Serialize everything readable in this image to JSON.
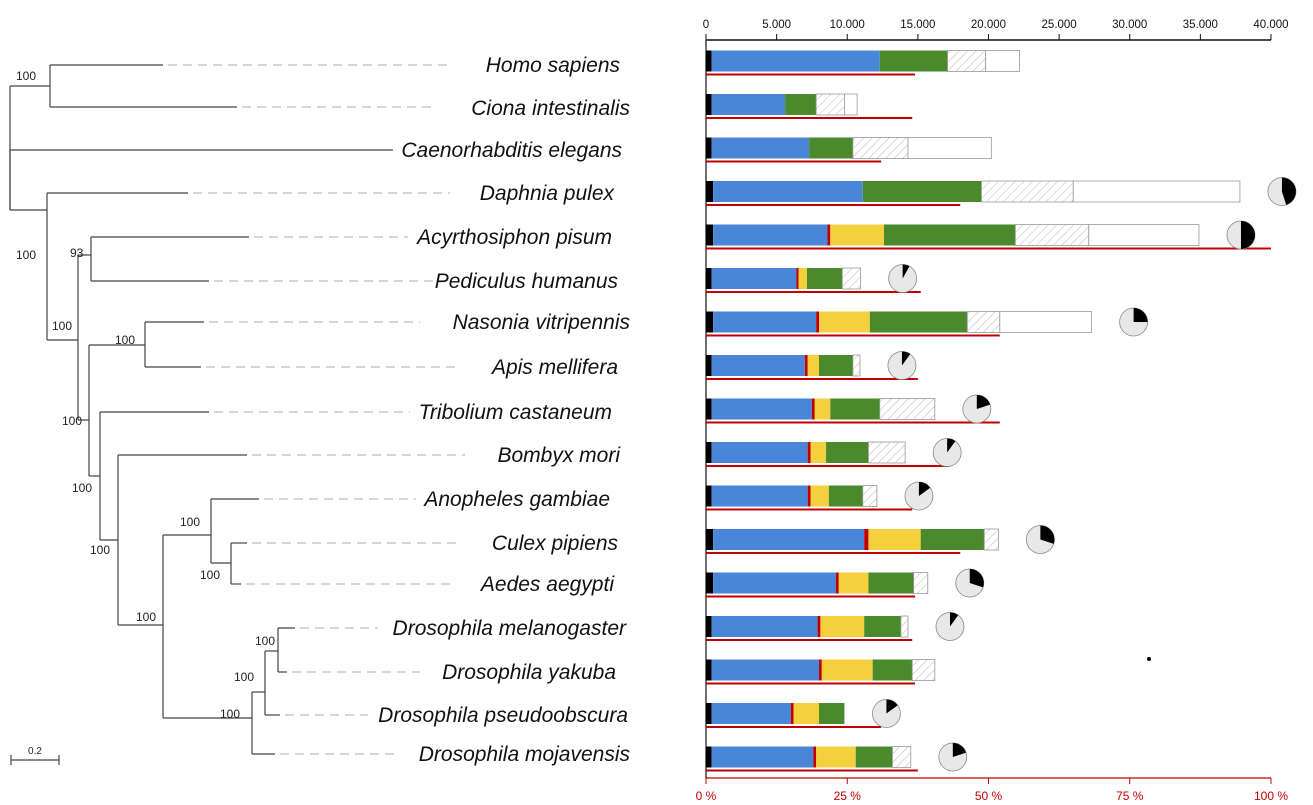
{
  "chart_data": [
    {
      "type": "tree",
      "scale_bar_label": "0.2",
      "leaves": [
        "Homo sapiens",
        "Ciona intestinalis",
        "Caenorhabditis elegans",
        "Daphnia pulex",
        "Acyrthosiphon pisum",
        "Pediculus humanus",
        "Nasonia vitripennis",
        "Apis mellifera",
        "Tribolium castaneum",
        "Bombyx mori",
        "Anopheles gambiae",
        "Culex pipiens",
        "Aedes aegypti",
        "Drosophila melanogaster",
        "Drosophila yakuba",
        "Drosophila pseudoobscura",
        "Drosophila mojavensis"
      ],
      "bootstrap_labels": [
        "100",
        "100",
        "93",
        "100",
        "100",
        "100",
        "100",
        "100",
        "100",
        "100",
        "100",
        "100",
        "100",
        "100"
      ]
    },
    {
      "type": "bar",
      "stacked": true,
      "xlim_top": [
        0,
        40000
      ],
      "top_ticks": [
        "0",
        "5.000",
        "10.000",
        "15.000",
        "20.000",
        "25.000",
        "30.000",
        "35.000",
        "40.000"
      ],
      "bottom_ticks": [
        "0 %",
        "25 %",
        "50 %",
        "75 %",
        "100 %"
      ],
      "segment_colors": [
        "#000000",
        "#4a86d8",
        "#c00000",
        "#f4d03f",
        "#4b8a2c",
        "hatch",
        "#ffffff"
      ],
      "series_colors": {
        "percent_line": "#c00000",
        "pie_fill": "#e8e8e8",
        "pie_slice": "#000000"
      },
      "rows": [
        {
          "species": "Homo sapiens",
          "segments": [
            400,
            11900,
            0,
            0,
            4800,
            2700,
            2400
          ],
          "percent": 37,
          "pie": null
        },
        {
          "species": "Ciona intestinalis",
          "segments": [
            400,
            5200,
            0,
            0,
            2200,
            2000,
            900
          ],
          "percent": 36.5,
          "pie": null
        },
        {
          "species": "Caenorhabditis elegans",
          "segments": [
            400,
            6900,
            0,
            0,
            3100,
            3900,
            5900
          ],
          "percent": 31,
          "pie": null
        },
        {
          "species": "Daphnia pulex",
          "segments": [
            500,
            10600,
            0,
            0,
            8400,
            6500,
            11800
          ],
          "percent": 45,
          "pie": 0.45
        },
        {
          "species": "Acyrthosiphon pisum",
          "segments": [
            500,
            8100,
            200,
            3800,
            9300,
            5200,
            7800
          ],
          "percent": 100,
          "pie": 0.5
        },
        {
          "species": "Pediculus humanus",
          "segments": [
            400,
            6000,
            150,
            600,
            2500,
            1300,
            0
          ],
          "percent": 38,
          "pie": 0.08
        },
        {
          "species": "Nasonia vitripennis",
          "segments": [
            500,
            7300,
            200,
            3600,
            6900,
            2300,
            6500
          ],
          "percent": 52,
          "pie": 0.25
        },
        {
          "species": "Apis mellifera",
          "segments": [
            400,
            6600,
            200,
            800,
            2400,
            500,
            0
          ],
          "percent": 37.5,
          "pie": 0.1
        },
        {
          "species": "Tribolium castaneum",
          "segments": [
            400,
            7100,
            200,
            1100,
            3500,
            3900,
            0
          ],
          "percent": 52,
          "pie": 0.2
        },
        {
          "species": "Bombyx mori",
          "segments": [
            400,
            6800,
            200,
            1100,
            3000,
            2600,
            0
          ],
          "percent": 43,
          "pie": 0.1
        },
        {
          "species": "Anopheles gambiae",
          "segments": [
            400,
            6800,
            200,
            1300,
            2400,
            1000,
            0
          ],
          "percent": 36.5,
          "pie": 0.15
        },
        {
          "species": "Culex pipiens",
          "segments": [
            500,
            10700,
            300,
            3700,
            4500,
            1000,
            0
          ],
          "percent": 45,
          "pie": 0.3
        },
        {
          "species": "Aedes aegypti",
          "segments": [
            500,
            8700,
            200,
            2100,
            3200,
            1000,
            0
          ],
          "percent": 37,
          "pie": 0.3
        },
        {
          "species": "Drosophila melanogaster",
          "segments": [
            400,
            7500,
            200,
            3100,
            2600,
            500,
            0
          ],
          "percent": 36.5,
          "pie": 0.1
        },
        {
          "species": "Drosophila yakuba",
          "segments": [
            400,
            7600,
            200,
            3600,
            2800,
            1600,
            0
          ],
          "percent": 37,
          "pie": null
        },
        {
          "species": "Drosophila pseudoobscura",
          "segments": [
            400,
            5600,
            200,
            1800,
            1800,
            0,
            0
          ],
          "percent": 31,
          "pie": 0.15
        },
        {
          "species": "Drosophila mojavensis",
          "segments": [
            400,
            7200,
            200,
            2800,
            2600,
            1300,
            0
          ],
          "percent": 37.5,
          "pie": 0.2
        }
      ]
    }
  ]
}
